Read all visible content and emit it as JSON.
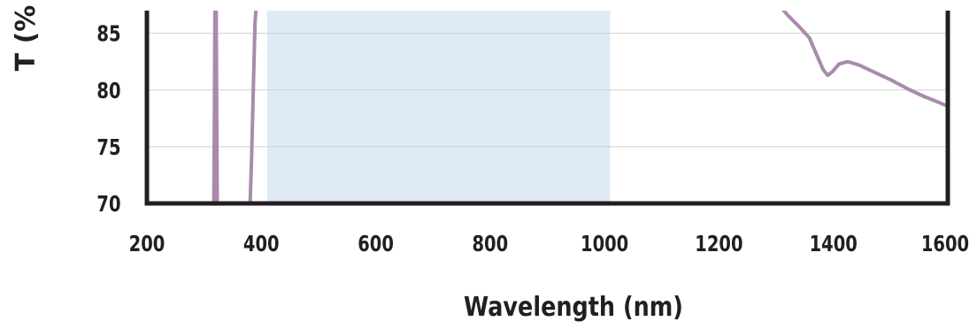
{
  "chart_data": {
    "type": "line",
    "xlabel": "Wavelength (nm)",
    "ylabel": "T (%",
    "xlim": [
      200,
      1600
    ],
    "ylim": [
      70,
      87
    ],
    "x_ticks": [
      "200",
      "400",
      "600",
      "800",
      "1000",
      "1200",
      "1400",
      "1600"
    ],
    "y_ticks": [
      "70",
      "75",
      "80",
      "85"
    ],
    "grid": true,
    "highlight_band": {
      "x_start": 410,
      "x_end": 1010,
      "color": "#deebf7"
    },
    "series": [
      {
        "color": "#a98aad",
        "points": [
          [
            317,
            69.5
          ],
          [
            318,
            78
          ],
          [
            319,
            87.5
          ],
          [
            320,
            80
          ],
          [
            321,
            88
          ],
          [
            322,
            78
          ],
          [
            323,
            70
          ],
          [
            324,
            69.5
          ],
          [
            380,
            69.5
          ],
          [
            383,
            74
          ],
          [
            386,
            80
          ],
          [
            389,
            86
          ],
          [
            392,
            88
          ],
          [
            1305,
            87.5
          ],
          [
            1320,
            86.6
          ],
          [
            1340,
            85.6
          ],
          [
            1358,
            84.6
          ],
          [
            1370,
            83.2
          ],
          [
            1382,
            81.8
          ],
          [
            1390,
            81.3
          ],
          [
            1398,
            81.6
          ],
          [
            1410,
            82.3
          ],
          [
            1425,
            82.5
          ],
          [
            1445,
            82.2
          ],
          [
            1470,
            81.6
          ],
          [
            1500,
            80.9
          ],
          [
            1530,
            80.1
          ],
          [
            1560,
            79.4
          ],
          [
            1585,
            78.9
          ],
          [
            1598,
            78.6
          ]
        ]
      }
    ]
  }
}
